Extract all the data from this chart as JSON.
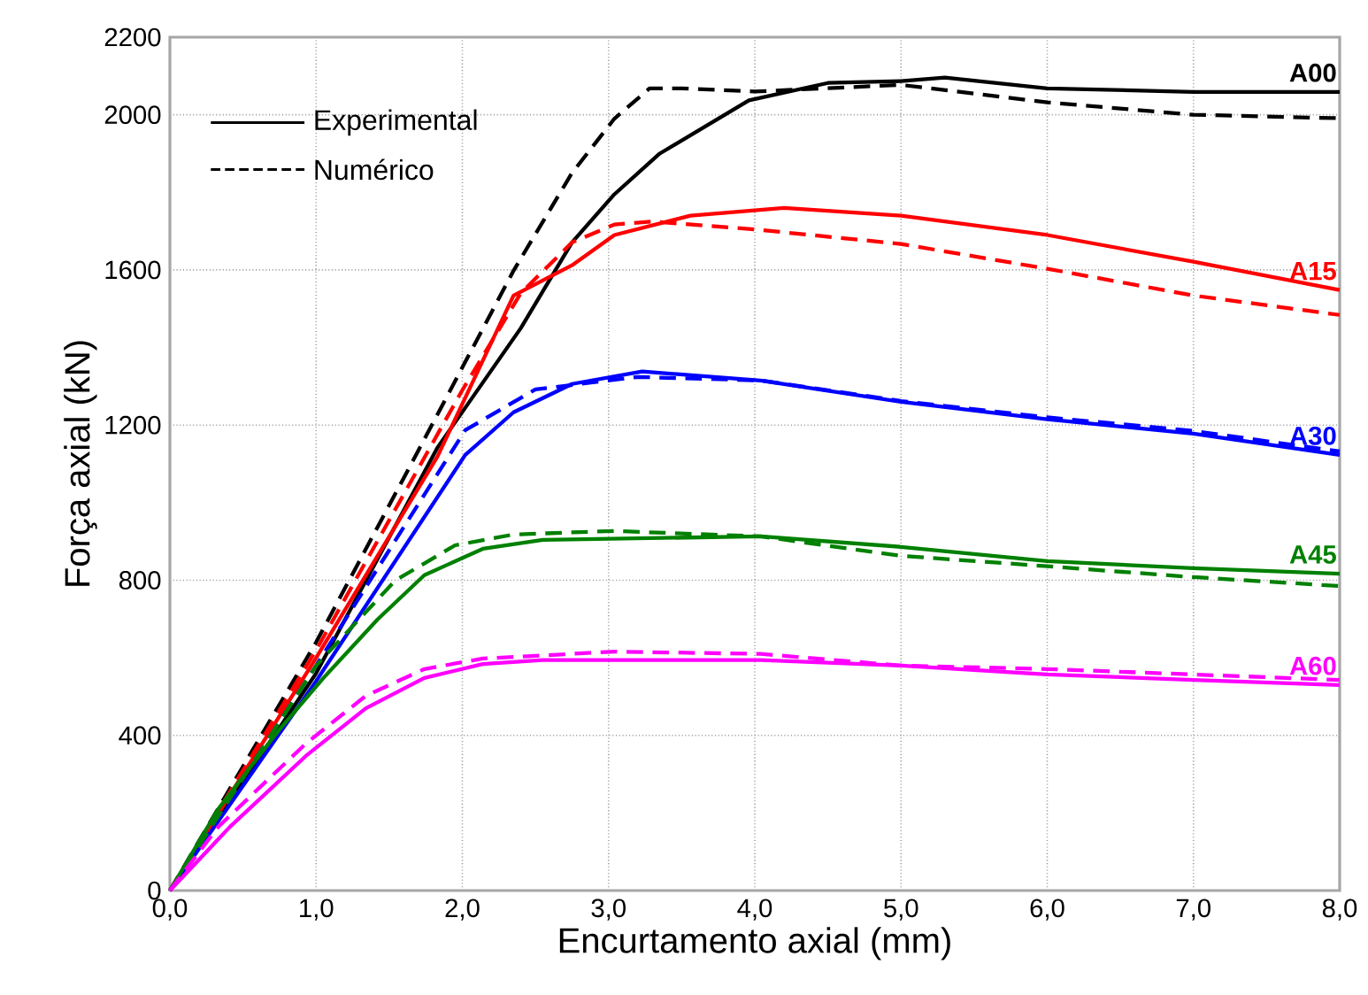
{
  "chart_data": {
    "type": "line",
    "xlabel": "Encurtamento axial (mm)",
    "ylabel": "Força axial (kN)",
    "xlim": [
      0,
      8
    ],
    "ylim": [
      0,
      2200
    ],
    "xticks": [
      {
        "value": 0,
        "label": "0,0"
      },
      {
        "value": 1,
        "label": "1,0"
      },
      {
        "value": 2,
        "label": "2,0"
      },
      {
        "value": 3,
        "label": "3,0"
      },
      {
        "value": 4,
        "label": "4,0"
      },
      {
        "value": 5,
        "label": "5,0"
      },
      {
        "value": 6,
        "label": "6,0"
      },
      {
        "value": 7,
        "label": "7,0"
      },
      {
        "value": 8,
        "label": "8,0"
      }
    ],
    "yticks": [
      0,
      400,
      800,
      1200,
      1600,
      2000,
      2200
    ],
    "grid": true,
    "annotations": [
      "Experimental",
      "Numérico"
    ],
    "series": [
      {
        "name": "A00",
        "color": "#000000",
        "line_style": "solid",
        "x": [
          0,
          1.0,
          1.83,
          2.4,
          2.75,
          3.04,
          3.35,
          3.96,
          4.5,
          5.0,
          5.3,
          6.0,
          7.0,
          8.0
        ],
        "values": [
          0,
          560,
          1142,
          1450,
          1671,
          1795,
          1900,
          2037,
          2082,
          2087,
          2096,
          2068,
          2059,
          2059
        ]
      },
      {
        "color": "#000000",
        "line_style": "dashed",
        "x": [
          0,
          1.0,
          1.71,
          2.35,
          2.75,
          3.04,
          3.28,
          3.5,
          4.0,
          5.0,
          6.0,
          7.0,
          8.0
        ],
        "values": [
          0,
          640,
          1142,
          1598,
          1850,
          1990,
          2068,
          2068,
          2060,
          2077,
          2032,
          2000,
          1991
        ]
      },
      {
        "name": "A15",
        "color": "#ff0000",
        "line_style": "solid",
        "x": [
          0,
          1.0,
          1.83,
          2.35,
          2.75,
          3.04,
          3.56,
          4.2,
          5.0,
          6.0,
          7.0,
          8.0
        ],
        "values": [
          0,
          600,
          1119,
          1534,
          1612,
          1690,
          1740,
          1760,
          1740,
          1690,
          1621,
          1548
        ]
      },
      {
        "color": "#ff0000",
        "line_style": "dashed",
        "x": [
          0,
          1.0,
          2.0,
          2.4,
          2.75,
          3.04,
          3.3,
          4.04,
          5.0,
          6.0,
          7.0,
          8.0
        ],
        "values": [
          0,
          620,
          1290,
          1540,
          1671,
          1717,
          1725,
          1703,
          1667,
          1603,
          1534,
          1484
        ]
      },
      {
        "name": "A30",
        "color": "#0000ff",
        "line_style": "solid",
        "x": [
          0,
          1.0,
          2.02,
          2.35,
          2.75,
          3.23,
          4.04,
          5.0,
          6.0,
          7.0,
          8.0
        ],
        "values": [
          0,
          540,
          1123,
          1233,
          1306,
          1338,
          1315,
          1260,
          1215,
          1178,
          1123
        ]
      },
      {
        "color": "#0000ff",
        "line_style": "dashed",
        "x": [
          0,
          1.0,
          2.02,
          2.5,
          3.2,
          4.04,
          5.0,
          6.0,
          7.0,
          8.0
        ],
        "values": [
          0,
          580,
          1187,
          1292,
          1324,
          1315,
          1262,
          1220,
          1185,
          1132
        ]
      },
      {
        "name": "A45",
        "color": "#008000",
        "line_style": "solid",
        "x": [
          0,
          0.33,
          0.74,
          1.05,
          1.42,
          1.74,
          2.14,
          2.55,
          4.04,
          5.0,
          6.0,
          7.0,
          8.0
        ],
        "values": [
          0,
          210,
          411,
          548,
          699,
          813,
          881,
          904,
          913,
          886,
          849,
          831,
          817
        ]
      },
      {
        "color": "#008000",
        "line_style": "dashed",
        "x": [
          0,
          1.0,
          1.54,
          1.95,
          2.35,
          3.04,
          4.04,
          5.0,
          6.0,
          7.0,
          8.0
        ],
        "values": [
          0,
          580,
          799,
          890,
          918,
          927,
          913,
          863,
          836,
          808,
          785
        ]
      },
      {
        "name": "A60",
        "color": "#ff00ff",
        "line_style": "solid",
        "x": [
          0,
          0.41,
          0.93,
          1.34,
          1.74,
          2.14,
          2.55,
          4.04,
          5.0,
          6.0,
          7.0,
          8.0
        ],
        "values": [
          0,
          164,
          347,
          470,
          548,
          584,
          594,
          594,
          580,
          557,
          543,
          530
        ]
      },
      {
        "color": "#ff00ff",
        "line_style": "dashed",
        "x": [
          0,
          0.33,
          0.93,
          1.34,
          1.74,
          2.14,
          3.04,
          4.04,
          5.0,
          6.0,
          7.0,
          8.0
        ],
        "values": [
          0,
          164,
          379,
          502,
          571,
          598,
          616,
          610,
          580,
          571,
          557,
          543
        ]
      }
    ]
  }
}
